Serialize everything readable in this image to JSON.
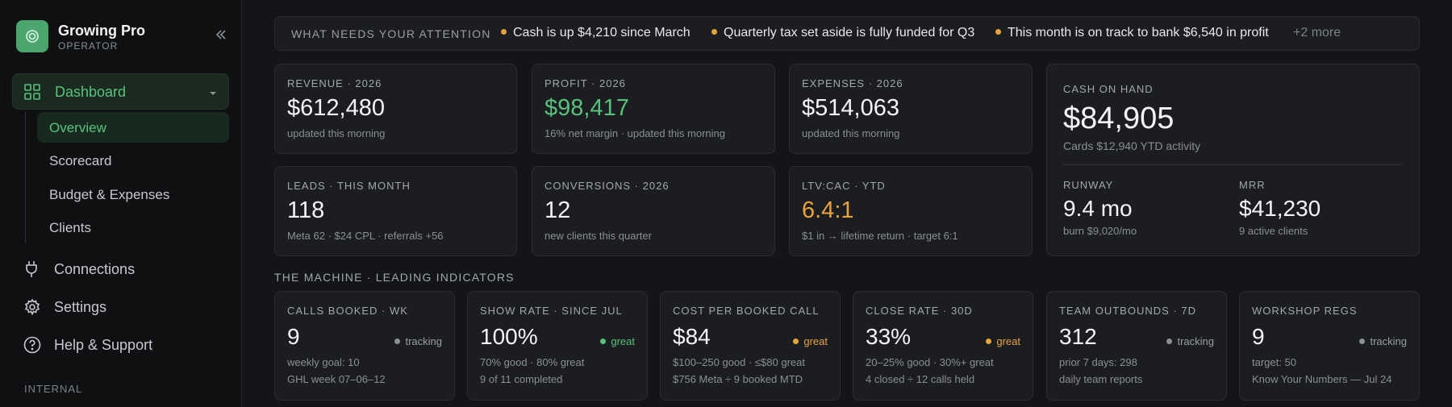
{
  "brand": {
    "name": "Growing Pro",
    "role": "OPERATOR",
    "logo_icon": "target-icon",
    "collapse_icon": "double-chevron-left-icon"
  },
  "sidebar": {
    "dashboard": {
      "label": "Dashboard",
      "icon": "grid-icon"
    },
    "subnav": [
      {
        "label": "Overview",
        "active": true
      },
      {
        "label": "Scorecard"
      },
      {
        "label": "Budget & Expenses"
      },
      {
        "label": "Clients"
      }
    ],
    "items": [
      {
        "label": "Connections",
        "icon": "plug-icon"
      },
      {
        "label": "Settings",
        "icon": "gear-icon"
      },
      {
        "label": "Help & Support",
        "icon": "help-circle-icon"
      }
    ],
    "section_internal": "INTERNAL"
  },
  "attention": {
    "title": "WHAT NEEDS YOUR ATTENTION",
    "items": [
      "Cash is up $4,210 since March",
      "Quarterly tax set aside is fully funded for Q3",
      "This month is on track to bank $6,540 in profit"
    ],
    "more": "+2 more"
  },
  "kpis": {
    "revenue": {
      "label": "REVENUE · 2026",
      "value": "$612,480",
      "sub": "updated this morning"
    },
    "profit": {
      "label": "PROFIT · 2026",
      "value": "$98,417",
      "sub": "16% net margin · updated this morning"
    },
    "expenses": {
      "label": "EXPENSES · 2026",
      "value": "$514,063",
      "sub": "updated this morning"
    },
    "leads": {
      "label": "LEADS · THIS MONTH",
      "value": "118",
      "sub": "Meta 62 · $24 CPL · referrals +56"
    },
    "conversions": {
      "label": "CONVERSIONS · 2026",
      "value": "12",
      "sub": "new clients this quarter"
    },
    "ltv": {
      "label": "LTV:CAC · YTD",
      "value": "6.4:1",
      "sub": "$1 in → lifetime return · target 6:1"
    }
  },
  "cash": {
    "label": "CASH ON HAND",
    "value": "$84,905",
    "sub": "Cards $12,940 YTD activity",
    "runway": {
      "label": "RUNWAY",
      "value": "9.4 mo",
      "sub": "burn $9,020/mo"
    },
    "mrr": {
      "label": "MRR",
      "value": "$41,230",
      "sub": "9 active clients"
    }
  },
  "machine": {
    "title": "THE MACHINE · LEADING INDICATORS",
    "indicators": [
      {
        "label": "CALLS BOOKED · WK",
        "value": "9",
        "status": "tracking",
        "line1": "weekly goal: 10",
        "line2": "GHL week 07–06–12"
      },
      {
        "label": "SHOW RATE · SINCE JUL",
        "value": "100%",
        "status": "great",
        "line1": "70% good · 80% great",
        "line2": "9 of 11 completed"
      },
      {
        "label": "COST PER BOOKED CALL",
        "value": "$84",
        "status": "great",
        "line1": "$100–250 good · ≤$80 great",
        "line2": "$756 Meta ÷ 9 booked MTD"
      },
      {
        "label": "CLOSE RATE · 30D",
        "value": "33%",
        "status": "great",
        "line1": "20–25% good · 30%+ great",
        "line2": "4 closed ÷ 12 calls held"
      },
      {
        "label": "TEAM OUTBOUNDS · 7D",
        "value": "312",
        "status": "tracking",
        "line1": "prior 7 days: 298",
        "line2": "daily team reports"
      },
      {
        "label": "WORKSHOP REGS",
        "value": "9",
        "status": "tracking",
        "line1": "target: 50",
        "line2": "Know Your Numbers — Jul 24"
      }
    ]
  },
  "colors": {
    "accent_green": "#58c27c",
    "accent_orange": "#e8a33d",
    "bg": "#141518",
    "card": "#1c1d21"
  }
}
